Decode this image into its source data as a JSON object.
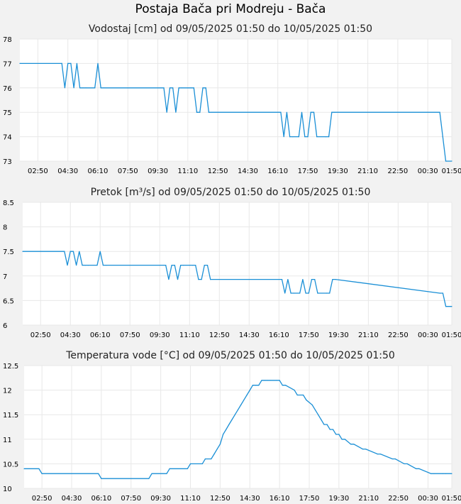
{
  "page": {
    "title": "Postaja Bača pri Modreju - Bača"
  },
  "colors": {
    "line": "#1a8fd6",
    "grid": "#e8e8e8",
    "plot_bg": "#ffffff",
    "page_bg": "#f2f2f2"
  },
  "chart_data": [
    {
      "type": "line",
      "title": "Vodostaj [cm] od 09/05/2025 01:50 do 10/05/2025 01:50",
      "xlabel": "",
      "ylabel": "",
      "ylim": [
        73,
        78
      ],
      "yticks": [
        "73",
        "74",
        "75",
        "76",
        "77",
        "78"
      ],
      "xlim": [
        "09/05/2025 01:50",
        "10/05/2025 01:50"
      ],
      "xticks": [
        "02:50",
        "04:30",
        "06:10",
        "07:50",
        "09:30",
        "11:10",
        "12:50",
        "14:30",
        "16:10",
        "17:50",
        "19:30",
        "21:10",
        "22:50",
        "00:30",
        "01:50"
      ],
      "grid": true,
      "series": [
        {
          "x": [
            "01:50",
            "04:10",
            "04:20",
            "04:30",
            "04:40",
            "04:50",
            "05:00",
            "05:10",
            "05:20",
            "05:30",
            "06:00",
            "06:10",
            "06:20",
            "06:30",
            "09:50",
            "10:00",
            "10:10",
            "10:20",
            "10:30",
            "10:40",
            "10:50",
            "11:20",
            "11:30",
            "11:40",
            "11:50",
            "12:00",
            "12:10",
            "12:20",
            "16:20",
            "16:30",
            "16:40",
            "16:50",
            "17:00",
            "17:20",
            "17:30",
            "17:40",
            "17:50",
            "18:00",
            "18:10",
            "18:20",
            "18:50",
            "19:00",
            "19:10",
            "19:20",
            "01:10",
            "01:20",
            "01:30",
            "01:50"
          ],
          "values": [
            77,
            77,
            76,
            77,
            77,
            76,
            77,
            76,
            76,
            76,
            76,
            77,
            76,
            76,
            76,
            75,
            76,
            76,
            75,
            76,
            76,
            76,
            76,
            75,
            75,
            76,
            76,
            75,
            75,
            74,
            75,
            74,
            74,
            74,
            75,
            74,
            74,
            75,
            75,
            74,
            74,
            74,
            75,
            75,
            75,
            74,
            73,
            73
          ]
        }
      ]
    },
    {
      "type": "line",
      "title": "Pretok [m³/s] od 09/05/2025 01:50 do 10/05/2025 01:50",
      "xlabel": "",
      "ylabel": "",
      "ylim": [
        6,
        8.5
      ],
      "yticks": [
        "6",
        "6.5",
        "7",
        "7.5",
        "8",
        "8.5"
      ],
      "xlim": [
        "09/05/2025 01:50",
        "10/05/2025 01:50"
      ],
      "xticks": [
        "02:50",
        "04:30",
        "06:10",
        "07:50",
        "09:30",
        "11:10",
        "12:50",
        "14:30",
        "16:10",
        "17:50",
        "19:30",
        "21:10",
        "22:50",
        "00:30",
        "01:50"
      ],
      "grid": true,
      "series": [
        {
          "x": [
            "01:50",
            "04:10",
            "04:20",
            "04:30",
            "04:40",
            "04:50",
            "05:00",
            "05:10",
            "05:20",
            "05:30",
            "06:00",
            "06:10",
            "06:20",
            "06:30",
            "09:50",
            "10:00",
            "10:10",
            "10:20",
            "10:30",
            "10:40",
            "10:50",
            "11:20",
            "11:30",
            "11:40",
            "11:50",
            "12:00",
            "12:10",
            "12:20",
            "16:20",
            "16:30",
            "16:40",
            "16:50",
            "17:00",
            "17:20",
            "17:30",
            "17:40",
            "17:50",
            "18:00",
            "18:10",
            "18:20",
            "18:50",
            "19:00",
            "19:10",
            "19:20",
            "01:10",
            "01:20",
            "01:30",
            "01:50"
          ],
          "values": [
            7.5,
            7.5,
            7.22,
            7.5,
            7.5,
            7.22,
            7.5,
            7.22,
            7.22,
            7.22,
            7.22,
            7.5,
            7.22,
            7.22,
            7.22,
            6.93,
            7.22,
            7.22,
            6.93,
            7.22,
            7.22,
            7.22,
            7.22,
            6.93,
            6.93,
            7.22,
            7.22,
            6.93,
            6.93,
            6.65,
            6.93,
            6.65,
            6.65,
            6.65,
            6.93,
            6.65,
            6.65,
            6.93,
            6.93,
            6.65,
            6.65,
            6.65,
            6.93,
            6.93,
            6.65,
            6.65,
            6.38,
            6.38
          ]
        }
      ]
    },
    {
      "type": "line",
      "title": "Temperatura vode [°C] od 09/05/2025 01:50 do 10/05/2025 01:50",
      "xlabel": "",
      "ylabel": "",
      "ylim": [
        10,
        12.5
      ],
      "yticks": [
        "10",
        "10.5",
        "11",
        "11.5",
        "12",
        "12.5"
      ],
      "xlim": [
        "09/05/2025 01:50",
        "10/05/2025 01:50"
      ],
      "xticks": [
        "02:50",
        "04:30",
        "06:10",
        "07:50",
        "09:30",
        "11:10",
        "12:50",
        "14:30",
        "16:10",
        "17:50",
        "19:30",
        "21:10",
        "22:50",
        "00:30",
        "01:50"
      ],
      "grid": true,
      "series": [
        {
          "x": [
            "01:50",
            "02:40",
            "02:50",
            "06:00",
            "06:10",
            "08:50",
            "09:00",
            "09:50",
            "10:00",
            "11:00",
            "11:10",
            "11:50",
            "12:00",
            "12:20",
            "12:30",
            "12:40",
            "12:50",
            "13:00",
            "13:10",
            "13:20",
            "13:30",
            "13:40",
            "13:50",
            "14:00",
            "14:10",
            "14:20",
            "14:30",
            "14:40",
            "14:50",
            "15:00",
            "15:10",
            "15:20",
            "15:30",
            "15:40",
            "16:00",
            "16:10",
            "16:20",
            "16:30",
            "17:00",
            "17:10",
            "17:30",
            "17:40",
            "18:00",
            "18:10",
            "18:20",
            "18:30",
            "18:40",
            "18:50",
            "19:00",
            "19:10",
            "19:20",
            "19:30",
            "19:40",
            "19:50",
            "20:10",
            "20:20",
            "20:50",
            "21:00",
            "21:40",
            "21:50",
            "22:30",
            "22:40",
            "23:10",
            "23:20",
            "23:50",
            "24:00",
            "24:40",
            "24:50",
            "25:20",
            "25:30",
            "25:50"
          ],
          "values": [
            10.4,
            10.4,
            10.3,
            10.3,
            10.2,
            10.2,
            10.3,
            10.3,
            10.4,
            10.4,
            10.5,
            10.5,
            10.6,
            10.6,
            10.7,
            10.8,
            10.9,
            11.1,
            11.2,
            11.3,
            11.4,
            11.5,
            11.6,
            11.7,
            11.8,
            11.9,
            12.0,
            12.1,
            12.1,
            12.1,
            12.2,
            12.2,
            12.2,
            12.2,
            12.2,
            12.2,
            12.1,
            12.1,
            12.0,
            11.9,
            11.9,
            11.8,
            11.7,
            11.6,
            11.5,
            11.4,
            11.3,
            11.3,
            11.2,
            11.2,
            11.1,
            11.1,
            11.0,
            11.0,
            10.9,
            10.9,
            10.8,
            10.8,
            10.7,
            10.7,
            10.6,
            10.6,
            10.5,
            10.5,
            10.4,
            10.4,
            10.3,
            10.3,
            10.3,
            10.3,
            10.3
          ]
        }
      ]
    }
  ]
}
